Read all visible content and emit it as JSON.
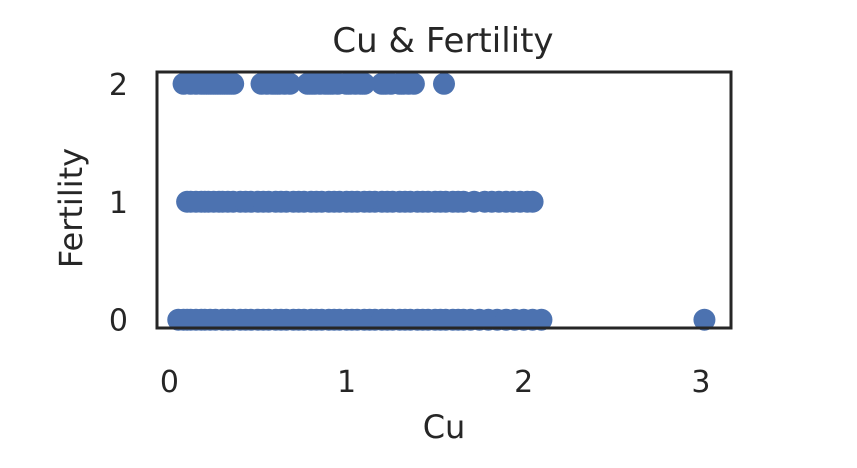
{
  "chart_data": {
    "type": "scatter",
    "title": "Cu & Fertility",
    "xlabel": "Cu",
    "ylabel": "Fertility",
    "xlim": [
      -0.07,
      3.17
    ],
    "ylim": [
      -0.07,
      2.1
    ],
    "xticks": [
      0,
      1,
      2,
      3
    ],
    "yticks": [
      0,
      1,
      2
    ],
    "grid": false,
    "marker_color": "#4C72B0",
    "series": [
      {
        "values_x": [
          0.08,
          0.12,
          0.15,
          0.18,
          0.2,
          0.22,
          0.24,
          0.26,
          0.28,
          0.3,
          0.32,
          0.34,
          0.36,
          0.52,
          0.55,
          0.58,
          0.6,
          0.62,
          0.65,
          0.68,
          0.78,
          0.8,
          0.82,
          0.85,
          0.88,
          0.9,
          0.92,
          0.95,
          1.0,
          1.02,
          1.05,
          1.08,
          1.1,
          1.2,
          1.22,
          1.25,
          1.3,
          1.32,
          1.35,
          1.38,
          1.55
        ],
        "values_y": [
          2,
          2,
          2,
          2,
          2,
          2,
          2,
          2,
          2,
          2,
          2,
          2,
          2,
          2,
          2,
          2,
          2,
          2,
          2,
          2,
          2,
          2,
          2,
          2,
          2,
          2,
          2,
          2,
          2,
          2,
          2,
          2,
          2,
          2,
          2,
          2,
          2,
          2,
          2,
          2,
          2
        ]
      },
      {
        "values_x": [
          0.1,
          0.12,
          0.15,
          0.18,
          0.2,
          0.22,
          0.25,
          0.28,
          0.3,
          0.33,
          0.36,
          0.4,
          0.43,
          0.46,
          0.5,
          0.53,
          0.56,
          0.6,
          0.63,
          0.66,
          0.7,
          0.73,
          0.76,
          0.8,
          0.83,
          0.86,
          0.9,
          0.93,
          0.96,
          1.0,
          1.03,
          1.06,
          1.1,
          1.13,
          1.16,
          1.2,
          1.23,
          1.26,
          1.3,
          1.33,
          1.36,
          1.4,
          1.43,
          1.46,
          1.5,
          1.53,
          1.56,
          1.6,
          1.63,
          1.66,
          1.72,
          1.78,
          1.82,
          1.86,
          1.9,
          1.94,
          1.98,
          2.02,
          2.05
        ],
        "values_y": [
          1,
          1,
          1,
          1,
          1,
          1,
          1,
          1,
          1,
          1,
          1,
          1,
          1,
          1,
          1,
          1,
          1,
          1,
          1,
          1,
          1,
          1,
          1,
          1,
          1,
          1,
          1,
          1,
          1,
          1,
          1,
          1,
          1,
          1,
          1,
          1,
          1,
          1,
          1,
          1,
          1,
          1,
          1,
          1,
          1,
          1,
          1,
          1,
          1,
          1,
          1,
          1,
          1,
          1,
          1,
          1,
          1,
          1,
          1
        ]
      },
      {
        "values_x": [
          0.05,
          0.08,
          0.1,
          0.12,
          0.15,
          0.18,
          0.2,
          0.23,
          0.26,
          0.3,
          0.33,
          0.36,
          0.4,
          0.43,
          0.46,
          0.5,
          0.53,
          0.56,
          0.6,
          0.63,
          0.66,
          0.7,
          0.73,
          0.76,
          0.8,
          0.83,
          0.86,
          0.9,
          0.93,
          0.96,
          1.0,
          1.03,
          1.06,
          1.1,
          1.13,
          1.16,
          1.2,
          1.23,
          1.26,
          1.3,
          1.33,
          1.36,
          1.4,
          1.43,
          1.46,
          1.5,
          1.53,
          1.56,
          1.6,
          1.63,
          1.66,
          1.7,
          1.75,
          1.8,
          1.85,
          1.9,
          1.95,
          2.0,
          2.05,
          2.1,
          3.02
        ],
        "values_y": [
          0,
          0,
          0,
          0,
          0,
          0,
          0,
          0,
          0,
          0,
          0,
          0,
          0,
          0,
          0,
          0,
          0,
          0,
          0,
          0,
          0,
          0,
          0,
          0,
          0,
          0,
          0,
          0,
          0,
          0,
          0,
          0,
          0,
          0,
          0,
          0,
          0,
          0,
          0,
          0,
          0,
          0,
          0,
          0,
          0,
          0,
          0,
          0,
          0,
          0,
          0,
          0,
          0,
          0,
          0,
          0,
          0,
          0,
          0,
          0,
          0
        ]
      }
    ]
  }
}
